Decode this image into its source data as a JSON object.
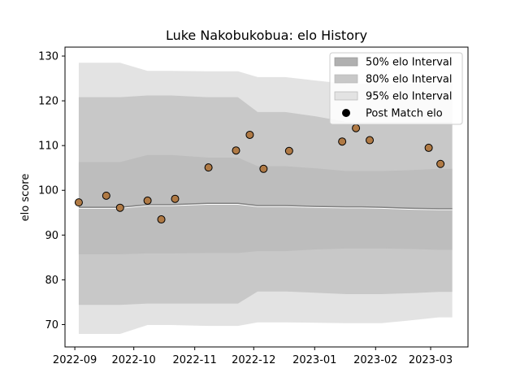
{
  "chart_data": {
    "type": "line",
    "title": "Luke Nakobukobua: elo History",
    "xlabel": "",
    "ylabel": "elo score",
    "x_ticks": [
      "2022-09",
      "2022-10",
      "2022-11",
      "2022-12",
      "2023-01",
      "2023-02",
      "2023-03"
    ],
    "y_ticks": [
      70,
      80,
      90,
      100,
      110,
      120,
      130
    ],
    "xlim": [
      "2022-08-27",
      "2023-03-20"
    ],
    "ylim": [
      65,
      132
    ],
    "legend": {
      "position": "top-right",
      "entries": [
        {
          "label": "50% elo Interval",
          "color": "#b0b0b0"
        },
        {
          "label": "80% elo Interval",
          "color": "#c8c8c8"
        },
        {
          "label": "95% elo Interval",
          "color": "#e3e3e3"
        },
        {
          "label": "Post Match elo",
          "color": "#000000"
        }
      ]
    },
    "bands": {
      "x": [
        "2022-09-03",
        "2022-09-16",
        "2022-09-24",
        "2022-10-08",
        "2022-10-20",
        "2022-11-08",
        "2022-11-23",
        "2022-12-03",
        "2022-12-17",
        "2023-01-02",
        "2023-01-17",
        "2023-01-25",
        "2023-02-04",
        "2023-02-18",
        "2023-03-05",
        "2023-03-12"
      ],
      "p95_upper": [
        128.5,
        128.5,
        128.5,
        126.7,
        126.7,
        126.6,
        126.6,
        125.3,
        125.3,
        124.5,
        123.8,
        123.8,
        123.8,
        123.8,
        123.8,
        123.8
      ],
      "p80_upper": [
        120.8,
        120.8,
        120.8,
        121.2,
        121.2,
        120.8,
        120.8,
        117.5,
        117.5,
        116.5,
        115.3,
        115.3,
        115.3,
        115.3,
        115.3,
        115.3
      ],
      "p50_upper": [
        106.3,
        106.3,
        106.3,
        107.9,
        107.9,
        107.3,
        107.3,
        105.4,
        105.4,
        104.9,
        104.3,
        104.3,
        104.3,
        104.5,
        104.8,
        104.8
      ],
      "p50_lower": [
        85.7,
        85.7,
        85.7,
        85.9,
        85.9,
        86.0,
        86.0,
        86.4,
        86.4,
        86.8,
        87.0,
        87.0,
        87.0,
        86.9,
        86.7,
        86.7
      ],
      "p80_lower": [
        74.4,
        74.4,
        74.4,
        74.7,
        74.7,
        74.7,
        74.7,
        77.4,
        77.4,
        77.1,
        76.8,
        76.8,
        76.8,
        77.0,
        77.3,
        77.3
      ],
      "p95_lower": [
        67.9,
        67.9,
        67.9,
        69.9,
        69.9,
        69.7,
        69.7,
        70.5,
        70.5,
        70.4,
        70.3,
        70.3,
        70.3,
        70.9,
        71.6,
        71.6
      ],
      "mean": [
        96.2,
        96.2,
        96.2,
        96.8,
        96.8,
        97.1,
        97.1,
        96.6,
        96.6,
        96.4,
        96.3,
        96.3,
        96.2,
        96.0,
        95.9,
        95.9
      ]
    },
    "series": [
      {
        "name": "Post Match elo",
        "x": [
          "2022-09-03",
          "2022-09-17",
          "2022-09-24",
          "2022-10-08",
          "2022-10-15",
          "2022-10-22",
          "2022-11-08",
          "2022-11-22",
          "2022-11-29",
          "2022-12-06",
          "2022-12-19",
          "2023-01-15",
          "2023-01-22",
          "2023-01-29",
          "2023-02-28",
          "2023-03-06"
        ],
        "values": [
          97.3,
          98.8,
          96.1,
          97.7,
          93.5,
          98.1,
          105.1,
          108.9,
          112.4,
          104.8,
          108.8,
          110.9,
          113.9,
          111.2,
          109.5,
          105.9
        ]
      }
    ]
  }
}
